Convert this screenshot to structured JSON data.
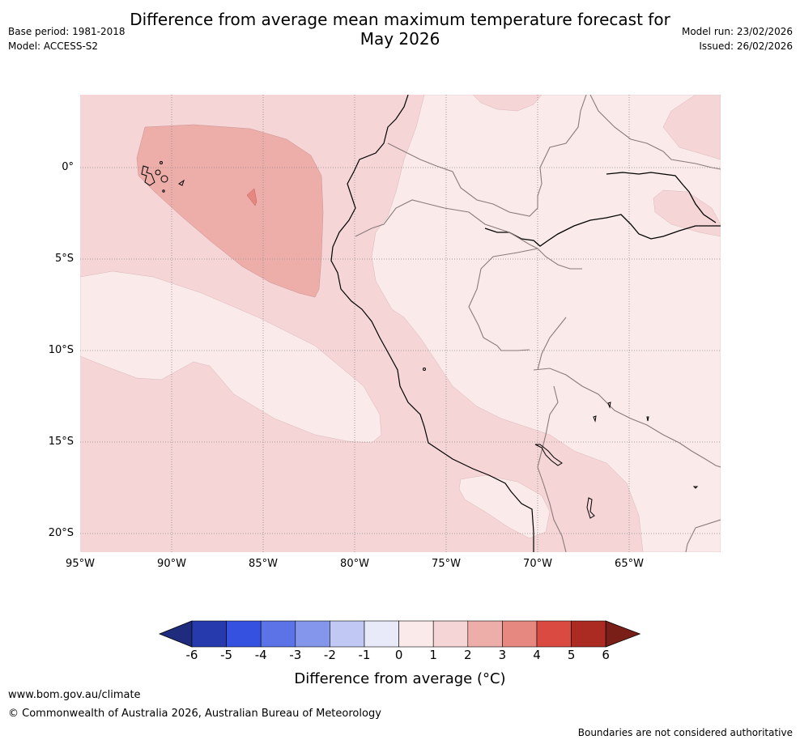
{
  "header": {
    "title_line1": "Difference from average mean maximum temperature forecast for",
    "title_line2": "May 2026",
    "base_period": "Base period: 1981-2018",
    "model": "Model: ACCESS-S2",
    "model_run": "Model run: 23/02/2026",
    "issued": "Issued: 26/02/2026"
  },
  "map": {
    "region": "Western South America",
    "lat_labels": [
      "0°",
      "5°S",
      "10°S",
      "15°S",
      "20°S"
    ],
    "lon_labels": [
      "95°W",
      "90°W",
      "85°W",
      "80°W",
      "75°W",
      "70°W",
      "65°W"
    ],
    "colors": {
      "anom_0_1": "#fbeaea",
      "anom_1_2": "#f5d5d5",
      "anom_2_3": "#edaeaa",
      "anom_3_4": "#e68780",
      "coast": "#000000",
      "border": "#8a7b7b",
      "grid": "#8c8c8c"
    }
  },
  "legend": {
    "tick_labels": [
      "-6",
      "-5",
      "-4",
      "-3",
      "-2",
      "-1",
      "0",
      "1",
      "2",
      "3",
      "4",
      "5",
      "6"
    ],
    "colors": [
      "#1f2c7e",
      "#2639ad",
      "#3451e0",
      "#5b73e6",
      "#8496ec",
      "#c0c8f3",
      "#e8eafa",
      "#fbeaea",
      "#f5d5d5",
      "#edaeaa",
      "#e68780",
      "#db4a40",
      "#ab2b22",
      "#7a1e18"
    ],
    "label": "Difference from average (°C)"
  },
  "footer": {
    "url": "www.bom.gov.au/climate",
    "copyright": "© Commonwealth of Australia 2026, Australian Bureau of Meteorology",
    "note": "Boundaries are not considered authoritative"
  }
}
